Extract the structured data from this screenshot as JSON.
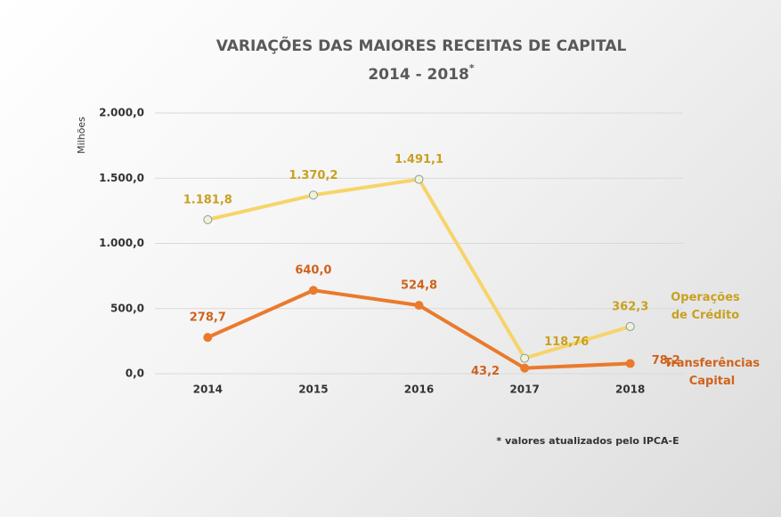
{
  "chart_data": {
    "type": "line",
    "title": "VARIAÇÕES DAS MAIORES RECEITAS DE CAPITAL",
    "subtitle": "2014 - 2018",
    "subtitle_mark": "*",
    "y_axis_label": "Milhões",
    "note": "* valores atualizados pelo IPCA-E",
    "categories": [
      "2014",
      "2015",
      "2016",
      "2017",
      "2018"
    ],
    "series": [
      {
        "name": "Operações de Crédito",
        "color": "#f7d46a",
        "label_color": "#c9a020",
        "values": [
          1181.8,
          1370.2,
          1491.1,
          118.76,
          362.3
        ],
        "value_labels": [
          "1.181,8",
          "1.370,2",
          "1.491,1",
          "118,76",
          "362,3"
        ]
      },
      {
        "name": "Transferências Capital",
        "color": "#ea7a2c",
        "label_color": "#d0621c",
        "values": [
          278.7,
          640.0,
          524.8,
          43.2,
          78.2
        ],
        "value_labels": [
          "278,7",
          "640,0",
          "524,8",
          "43,2",
          "78,2"
        ]
      }
    ],
    "ylim": [
      0,
      2000
    ],
    "yticks": [
      {
        "value": 0,
        "label": "0,0"
      },
      {
        "value": 500,
        "label": "500,0"
      },
      {
        "value": 1000,
        "label": "1.000,0"
      },
      {
        "value": 1500,
        "label": "1.500,0"
      },
      {
        "value": 2000,
        "label": "2.000,0"
      }
    ],
    "grid": true
  }
}
